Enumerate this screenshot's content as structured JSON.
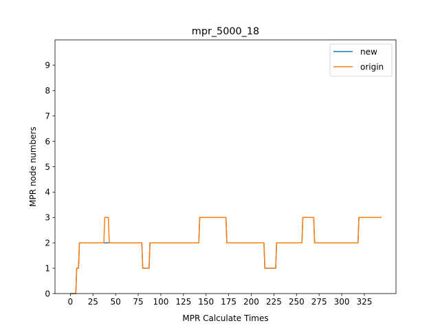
{
  "chart_data": {
    "type": "line",
    "title": "mpr_5000_18",
    "xlabel": "MPR Calculate Times",
    "ylabel": "MPR node numbers",
    "xlim": [
      -17,
      360
    ],
    "ylim": [
      0,
      10
    ],
    "xticks": [
      0,
      25,
      50,
      75,
      100,
      125,
      150,
      175,
      200,
      225,
      250,
      275,
      300,
      325
    ],
    "yticks": [
      0,
      1,
      2,
      3,
      4,
      5,
      6,
      7,
      8,
      9
    ],
    "grid": false,
    "legend_position": "top-right",
    "series": [
      {
        "name": "new",
        "color": "#1f77b4",
        "points": [
          [
            0,
            0
          ],
          [
            6,
            0
          ],
          [
            7,
            1
          ],
          [
            9,
            1
          ],
          [
            10,
            2
          ],
          [
            79,
            2
          ],
          [
            80,
            1
          ],
          [
            87,
            1
          ],
          [
            88,
            2
          ],
          [
            142,
            2
          ],
          [
            143,
            3
          ],
          [
            172,
            3
          ],
          [
            173,
            2
          ],
          [
            214,
            2
          ],
          [
            215,
            1
          ],
          [
            227,
            1
          ],
          [
            228,
            2
          ],
          [
            256,
            2
          ],
          [
            257,
            3
          ],
          [
            269,
            3
          ],
          [
            270,
            2
          ],
          [
            318,
            2
          ],
          [
            319,
            3
          ],
          [
            344,
            3
          ]
        ]
      },
      {
        "name": "origin",
        "color": "#ff7f0e",
        "points": [
          [
            0,
            0
          ],
          [
            6,
            0
          ],
          [
            7,
            1
          ],
          [
            9,
            1
          ],
          [
            10,
            2
          ],
          [
            37,
            2
          ],
          [
            38,
            3
          ],
          [
            42,
            3
          ],
          [
            43,
            2
          ],
          [
            79,
            2
          ],
          [
            80,
            1
          ],
          [
            87,
            1
          ],
          [
            88,
            2
          ],
          [
            142,
            2
          ],
          [
            143,
            3
          ],
          [
            172,
            3
          ],
          [
            173,
            2
          ],
          [
            214,
            2
          ],
          [
            215,
            1
          ],
          [
            227,
            1
          ],
          [
            228,
            2
          ],
          [
            256,
            2
          ],
          [
            257,
            3
          ],
          [
            269,
            3
          ],
          [
            270,
            2
          ],
          [
            318,
            2
          ],
          [
            319,
            3
          ],
          [
            344,
            3
          ]
        ]
      }
    ]
  }
}
